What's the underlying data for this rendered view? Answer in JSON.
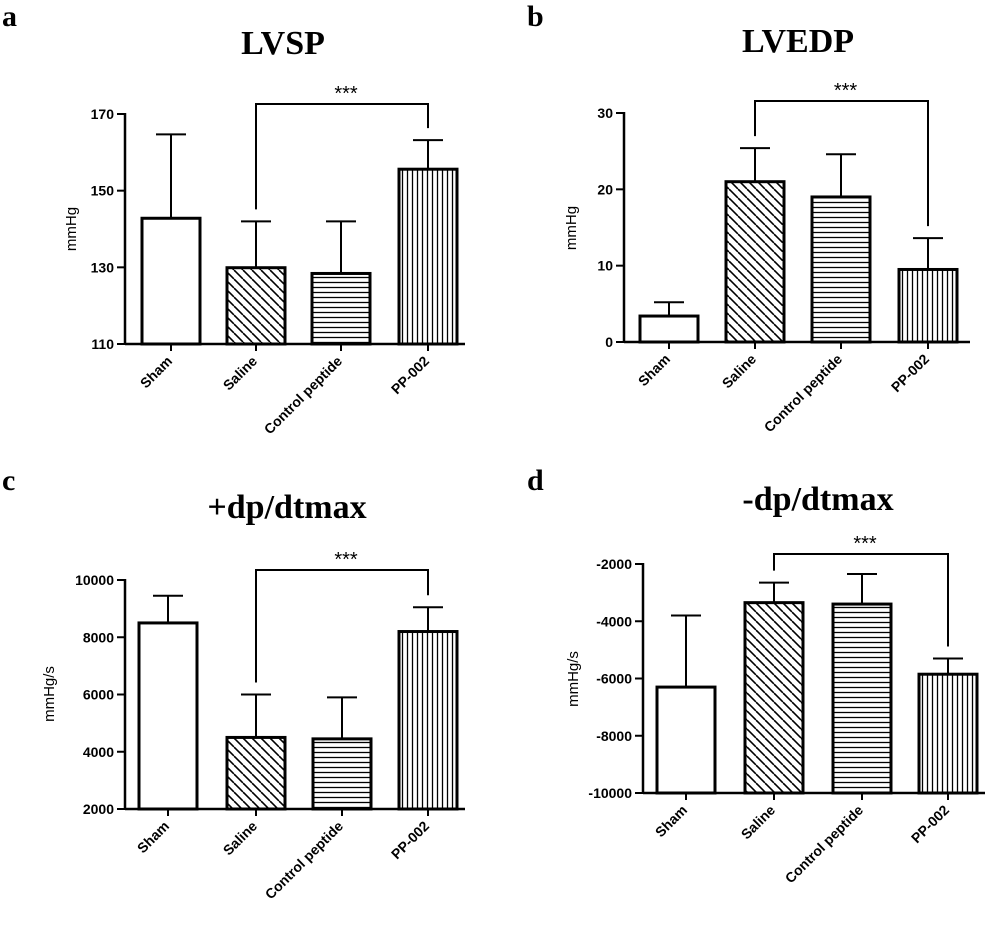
{
  "figure": {
    "categories": [
      "Sham",
      "Saline",
      "Control peptide",
      "PP-002"
    ],
    "colors": {
      "ink": "#000000",
      "background": "#ffffff"
    },
    "patterns": [
      "none",
      "diagonal",
      "horizontal",
      "vertical"
    ]
  },
  "chart_data": [
    {
      "panel": "a",
      "type": "bar",
      "title": "LVSP",
      "ylabel": "mmHg",
      "xlabel": "",
      "categories": [
        "Sham",
        "Saline",
        "Control peptide",
        "PP-002"
      ],
      "values": [
        142.8,
        129.9,
        128.4,
        155.6
      ],
      "error_upper": [
        164.7,
        142.0,
        142.0,
        163.2
      ],
      "ylim": [
        110,
        170
      ],
      "yticks": [
        110,
        130,
        150,
        170
      ],
      "ytick_labels": [
        "110",
        "130",
        "150",
        "170"
      ],
      "significance": {
        "label": "***",
        "from": "Saline",
        "to": "PP-002"
      }
    },
    {
      "panel": "b",
      "type": "bar",
      "title": "LVEDP",
      "ylabel": "mmHg",
      "xlabel": "",
      "categories": [
        "Sham",
        "Saline",
        "Control peptide",
        "PP-002"
      ],
      "values": [
        3.4,
        21.0,
        19.0,
        9.5
      ],
      "error_upper": [
        5.2,
        25.4,
        24.6,
        13.6
      ],
      "ylim": [
        0,
        30
      ],
      "yticks": [
        0,
        10,
        20,
        30
      ],
      "ytick_labels": [
        "0",
        "10",
        "20",
        "30"
      ],
      "significance": {
        "label": "***",
        "from": "Saline",
        "to": "PP-002"
      }
    },
    {
      "panel": "c",
      "type": "bar",
      "title": "+dp/dtmax",
      "ylabel": "mmHg/s",
      "xlabel": "",
      "categories": [
        "Sham",
        "Saline",
        "Control peptide",
        "PP-002"
      ],
      "values": [
        8500,
        4500,
        4450,
        8200
      ],
      "error_upper": [
        9450,
        6000,
        5900,
        9050
      ],
      "ylim": [
        2000,
        10000
      ],
      "yticks": [
        2000,
        4000,
        6000,
        8000,
        10000
      ],
      "ytick_labels": [
        "2000",
        "4000",
        "6000",
        "8000",
        "10000"
      ],
      "significance": {
        "label": "***",
        "from": "Saline",
        "to": "PP-002"
      }
    },
    {
      "panel": "d",
      "type": "bar",
      "title": "-dp/dtmax",
      "ylabel": "mmHg/s",
      "xlabel": "",
      "categories": [
        "Sham",
        "Saline",
        "Control peptide",
        "PP-002"
      ],
      "values": [
        -6300,
        -3350,
        -3400,
        -5850
      ],
      "error_upper": [
        -3800,
        -2650,
        -2350,
        -5300
      ],
      "ylim": [
        -10000,
        -2000
      ],
      "yticks": [
        -10000,
        -8000,
        -6000,
        -4000,
        -2000
      ],
      "ytick_labels": [
        "-10000",
        "-8000",
        "-6000",
        "-4000",
        "-2000"
      ],
      "significance": {
        "label": "***",
        "from": "Saline",
        "to": "PP-002"
      }
    }
  ]
}
